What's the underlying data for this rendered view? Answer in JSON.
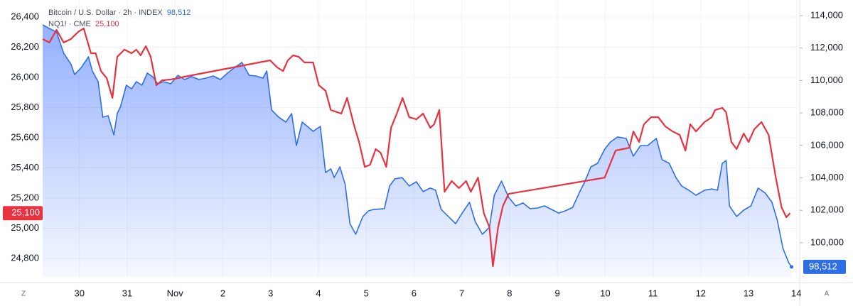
{
  "chart_data": {
    "type": "line",
    "xlim": [
      29.23,
      45.07
    ],
    "xticks": [
      {
        "value": 30,
        "label": "30"
      },
      {
        "value": 31,
        "label": "31"
      },
      {
        "value": 32,
        "label": "Nov"
      },
      {
        "value": 33,
        "label": "2"
      },
      {
        "value": 34,
        "label": "3"
      },
      {
        "value": 35,
        "label": "4"
      },
      {
        "value": 36,
        "label": "5"
      },
      {
        "value": 37,
        "label": "6"
      },
      {
        "value": 38,
        "label": "7"
      },
      {
        "value": 39,
        "label": "8"
      },
      {
        "value": 40,
        "label": "9"
      },
      {
        "value": 41,
        "label": "10"
      },
      {
        "value": 42,
        "label": "11"
      },
      {
        "value": 43,
        "label": "12"
      },
      {
        "value": 44,
        "label": "13"
      },
      {
        "value": 45,
        "label": "14"
      }
    ],
    "ylim": [
      24678,
      26513
    ],
    "yticks": [
      {
        "value": 24800,
        "label": "24,800"
      },
      {
        "value": 25000,
        "label": "25,000"
      },
      {
        "value": 25200,
        "label": "25,200"
      },
      {
        "value": 25400,
        "label": "25,400"
      },
      {
        "value": 25600,
        "label": "25,600"
      },
      {
        "value": 25800,
        "label": "25,800"
      },
      {
        "value": 26000,
        "label": "26,000"
      },
      {
        "value": 26200,
        "label": "26,200"
      },
      {
        "value": 26400,
        "label": "26,400"
      }
    ],
    "y2lim": [
      97896,
      114963
    ],
    "y2ticks": [
      {
        "value": 100000,
        "label": "100,000"
      },
      {
        "value": 102000,
        "label": "102,000"
      },
      {
        "value": 104000,
        "label": "104,000"
      },
      {
        "value": 106000,
        "label": "106,000"
      },
      {
        "value": 108000,
        "label": "108,000"
      },
      {
        "value": 110000,
        "label": "110,000"
      },
      {
        "value": 112000,
        "label": "112,000"
      },
      {
        "value": 114000,
        "label": "114,000"
      }
    ],
    "grid": true,
    "series": [
      {
        "name": "Bitcoin / U.S. Dollar · 2h · INDEX",
        "color": "#2f6fe4",
        "axis": "y2",
        "area": true,
        "last_label": "98,512",
        "x": [
          29.23,
          29.37,
          29.52,
          29.67,
          29.82,
          29.9,
          30.04,
          30.19,
          30.27,
          30.39,
          30.49,
          30.6,
          30.72,
          30.79,
          30.86,
          30.98,
          31.09,
          31.19,
          31.31,
          31.42,
          31.53,
          31.64,
          31.76,
          31.91,
          32.06,
          32.2,
          32.35,
          32.5,
          32.65,
          32.8,
          32.95,
          33.1,
          33.25,
          33.4,
          33.55,
          33.69,
          33.84,
          33.92,
          34.02,
          34.17,
          34.32,
          34.44,
          34.54,
          34.66,
          34.89,
          35.04,
          35.15,
          35.26,
          35.33,
          35.45,
          35.56,
          35.66,
          35.78,
          35.93,
          36.05,
          36.15,
          36.38,
          36.49,
          36.6,
          36.75,
          36.9,
          37.05,
          37.19,
          37.34,
          37.45,
          37.57,
          37.72,
          37.87,
          38.01,
          38.16,
          38.28,
          38.43,
          38.58,
          38.68,
          38.83,
          38.98,
          39.13,
          39.28,
          39.43,
          39.58,
          39.73,
          39.88,
          40.03,
          40.17,
          40.32,
          40.47,
          40.58,
          40.7,
          40.84,
          40.99,
          41.11,
          41.26,
          41.44,
          41.59,
          41.74,
          41.89,
          42.07,
          42.19,
          42.34,
          42.48,
          42.6,
          42.75,
          42.9,
          43.08,
          43.23,
          43.35,
          43.45,
          43.53,
          43.6,
          43.75,
          43.9,
          44.05,
          44.2,
          44.35,
          44.49,
          44.6,
          44.72,
          44.84,
          44.9
        ],
        "values": [
          113430,
          113210,
          112990,
          111680,
          111020,
          110370,
          110810,
          111460,
          110590,
          109930,
          107740,
          107830,
          106650,
          107960,
          108400,
          109710,
          109490,
          109930,
          109710,
          110460,
          110240,
          109800,
          109930,
          109800,
          110320,
          110060,
          110240,
          110060,
          110150,
          110280,
          110060,
          110460,
          110810,
          111110,
          110320,
          110280,
          110150,
          110590,
          108180,
          107740,
          107440,
          107960,
          105990,
          107440,
          106870,
          107170,
          104330,
          104550,
          104020,
          104680,
          103590,
          101180,
          100520,
          101620,
          101970,
          102050,
          102100,
          103500,
          103940,
          104020,
          103500,
          103760,
          103150,
          103370,
          103240,
          102050,
          101620,
          101180,
          101830,
          102490,
          101310,
          100520,
          100960,
          102930,
          103800,
          102800,
          102270,
          102450,
          102100,
          102140,
          102270,
          102050,
          101830,
          101970,
          102180,
          103150,
          103800,
          104680,
          104900,
          105770,
          106210,
          106520,
          106430,
          105340,
          105990,
          105990,
          106430,
          105120,
          104900,
          104020,
          103500,
          103240,
          102930,
          103240,
          103320,
          103240,
          104900,
          105070,
          102270,
          101620,
          102010,
          102270,
          103370,
          103060,
          102490,
          101400,
          99650,
          98770,
          98512
        ]
      },
      {
        "name": "NQ1! · CME",
        "color": "#e8323f",
        "axis": "y",
        "area": false,
        "last_label": "25,100",
        "x": [
          29.23,
          29.37,
          29.52,
          29.67,
          29.82,
          29.97,
          30.09,
          30.24,
          30.34,
          30.45,
          30.57,
          30.69,
          30.79,
          30.94,
          31.09,
          31.19,
          31.28,
          31.39,
          31.49,
          31.61,
          31.73,
          31.91,
          32.06,
          32.2,
          33.99,
          34.14,
          34.26,
          34.36,
          34.47,
          34.59,
          34.71,
          34.89,
          35.01,
          35.15,
          35.26,
          35.48,
          35.6,
          35.74,
          35.85,
          35.97,
          36.08,
          36.2,
          36.3,
          36.42,
          36.52,
          36.64,
          36.76,
          36.9,
          37.05,
          37.19,
          37.34,
          37.42,
          37.53,
          37.64,
          37.79,
          37.94,
          38.09,
          38.19,
          38.34,
          38.46,
          38.58,
          38.65,
          38.76,
          38.86,
          38.98,
          40.99,
          41.11,
          41.22,
          41.37,
          41.51,
          41.59,
          41.71,
          41.81,
          41.96,
          42.11,
          42.26,
          42.41,
          42.56,
          42.68,
          42.78,
          42.9,
          43.08,
          43.23,
          43.3,
          43.45,
          43.53,
          43.64,
          43.75,
          43.9,
          44.0,
          44.12,
          44.27,
          44.42,
          44.57,
          44.69,
          44.79,
          44.87
        ],
        "values": [
          26254,
          26231,
          26315,
          26231,
          26254,
          26301,
          26325,
          26160,
          26160,
          26042,
          25995,
          25864,
          26136,
          26184,
          26160,
          26184,
          26146,
          26207,
          26136,
          25948,
          25981,
          25986,
          25995,
          26005,
          26113,
          26066,
          26042,
          26113,
          26146,
          26136,
          26099,
          26099,
          25948,
          25911,
          25784,
          25760,
          25864,
          25689,
          25572,
          25407,
          25421,
          25525,
          25501,
          25407,
          25666,
          25760,
          25864,
          25736,
          25722,
          25760,
          25666,
          25689,
          25784,
          25242,
          25313,
          25266,
          25313,
          25242,
          25336,
          25101,
          25007,
          24748,
          25007,
          25148,
          25228,
          25336,
          25431,
          25515,
          25525,
          25534,
          25642,
          25572,
          25689,
          25736,
          25736,
          25675,
          25642,
          25619,
          25515,
          25689,
          25642,
          25704,
          25736,
          25784,
          25798,
          25769,
          25572,
          25525,
          25628,
          25572,
          25656,
          25704,
          25619,
          25336,
          25139,
          25073,
          25100
        ]
      }
    ]
  },
  "axis_buttons": {
    "left": "Z",
    "right": "A"
  }
}
